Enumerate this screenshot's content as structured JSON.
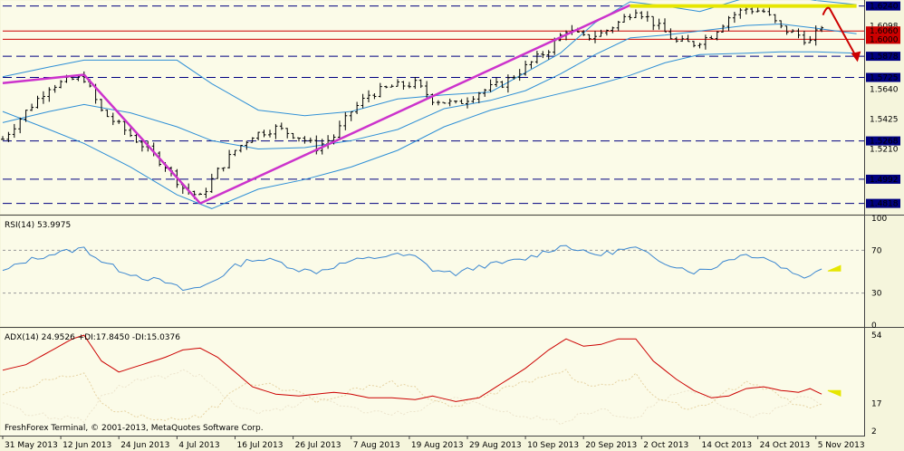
{
  "colors": {
    "background": "#f5f5dc",
    "bars": "#000000",
    "bollinger": "#2e8fd6",
    "trendline": "#cc33cc",
    "resistance": "#e6e600",
    "hline": "#000080",
    "red_line": "#cc0000",
    "rsi": "#3a86d0",
    "adx": "#cc0000",
    "pdi": "#e6d3a3",
    "ndi": "#ece4cc",
    "arrow": "#cc0000",
    "marker": "#e6e600"
  },
  "footer": "FreshForex Terminal, © 2001-2013, MetaQuotes Software Corp.",
  "chart_data": [
    {
      "type": "line",
      "name": "price",
      "ylim": [
        1.475,
        1.627
      ],
      "xlim": [
        0,
        148
      ],
      "x_tick_labels": [
        "31 May 2013",
        "12 Jun 2013",
        "24 Jun 2013",
        "4 Jul 2013",
        "16 Jul 2013",
        "26 Jul 2013",
        "7 Aug 2013",
        "19 Aug 2013",
        "29 Aug 2013",
        "10 Sep 2013",
        "20 Sep 2013",
        "2 Oct 2013",
        "14 Oct 2013",
        "24 Oct 2013",
        "5 Nov 2013"
      ],
      "x_tick_index": [
        0,
        10,
        20,
        30,
        40,
        50,
        60,
        70,
        80,
        90,
        100,
        110,
        120,
        130,
        140
      ],
      "y_tick_labels": [
        "1.6098",
        "1.5878",
        "1.5725",
        "1.5640",
        "1.5425",
        "1.5268",
        "1.5210",
        "1.4992",
        "1.4818"
      ],
      "horizontal_levels": [
        1.624,
        1.606,
        1.6,
        1.5878,
        1.5725,
        1.5268,
        1.4992,
        1.4818
      ],
      "level_labels": [
        "1.6240",
        "1.6060",
        "1.6000",
        "1.5878",
        "1.5725",
        "1.5268",
        "1.4992",
        "1.4818"
      ],
      "red_levels": [
        1.606,
        1.6
      ],
      "trend_lines": [
        {
          "x": [
            0,
            14
          ],
          "y": [
            1.5685,
            1.5745
          ]
        },
        {
          "x": [
            14,
            34
          ],
          "y": [
            1.5745,
            1.4818
          ]
        },
        {
          "x": [
            34,
            108
          ],
          "y": [
            1.4818,
            1.6245
          ]
        }
      ],
      "resistance": {
        "x": [
          108,
          147
        ],
        "y": [
          1.624,
          1.624
        ]
      },
      "ohlc_close_anchors": {
        "x": [
          0,
          4,
          8,
          12,
          14,
          17,
          20,
          24,
          28,
          31,
          34,
          37,
          40,
          43,
          47,
          51,
          54,
          57,
          60,
          63,
          67,
          71,
          74,
          78,
          82,
          86,
          90,
          94,
          97,
          100,
          103,
          106,
          109,
          112,
          116,
          119,
          122,
          125,
          128,
          131,
          134,
          137,
          139,
          141
        ],
        "y": [
          1.528,
          1.548,
          1.566,
          1.571,
          1.572,
          1.548,
          1.538,
          1.524,
          1.509,
          1.493,
          1.486,
          1.505,
          1.52,
          1.531,
          1.536,
          1.53,
          1.522,
          1.53,
          1.548,
          1.56,
          1.566,
          1.568,
          1.557,
          1.553,
          1.562,
          1.568,
          1.58,
          1.593,
          1.607,
          1.601,
          1.604,
          1.612,
          1.622,
          1.612,
          1.598,
          1.597,
          1.603,
          1.616,
          1.622,
          1.62,
          1.608,
          1.603,
          1.598,
          1.61
        ]
      },
      "bollinger_upper": {
        "x": [
          0,
          8,
          14,
          22,
          30,
          36,
          44,
          52,
          60,
          68,
          76,
          84,
          90,
          96,
          102,
          108,
          114,
          120,
          128,
          134,
          140,
          147
        ],
        "y": [
          1.573,
          1.58,
          1.585,
          1.585,
          1.585,
          1.568,
          1.549,
          1.545,
          1.548,
          1.557,
          1.56,
          1.562,
          1.576,
          1.59,
          1.612,
          1.627,
          1.624,
          1.62,
          1.63,
          1.632,
          1.628,
          1.625
        ]
      },
      "bollinger_middle": {
        "x": [
          0,
          8,
          14,
          22,
          30,
          36,
          44,
          52,
          60,
          68,
          76,
          84,
          90,
          96,
          102,
          108,
          114,
          120,
          128,
          134,
          140,
          147
        ],
        "y": [
          1.54,
          1.548,
          1.553,
          1.547,
          1.537,
          1.527,
          1.521,
          1.522,
          1.527,
          1.535,
          1.55,
          1.556,
          1.563,
          1.575,
          1.589,
          1.601,
          1.603,
          1.606,
          1.61,
          1.611,
          1.608,
          1.604
        ]
      },
      "bollinger_lower": {
        "x": [
          0,
          8,
          14,
          22,
          30,
          36,
          44,
          52,
          60,
          68,
          76,
          84,
          90,
          96,
          102,
          108,
          114,
          120,
          128,
          134,
          140,
          147
        ],
        "y": [
          1.548,
          1.535,
          1.525,
          1.508,
          1.488,
          1.478,
          1.492,
          1.499,
          1.508,
          1.52,
          1.537,
          1.549,
          1.555,
          1.561,
          1.567,
          1.574,
          1.583,
          1.589,
          1.59,
          1.591,
          1.591,
          1.59
        ]
      }
    },
    {
      "type": "line",
      "name": "rsi",
      "label": "RSI(14) 53.9975",
      "ylim": [
        0,
        100
      ],
      "y_tick_labels": [
        "100",
        "70",
        "30",
        "0"
      ],
      "y_tick_values": [
        100,
        70,
        30,
        0
      ],
      "levels": [
        70,
        30
      ],
      "x": [
        0,
        4,
        8,
        12,
        14,
        17,
        20,
        24,
        28,
        31,
        34,
        37,
        40,
        43,
        47,
        51,
        54,
        57,
        60,
        63,
        67,
        71,
        74,
        78,
        82,
        86,
        90,
        94,
        97,
        100,
        103,
        106,
        109,
        112,
        116,
        119,
        122,
        125,
        128,
        131,
        134,
        137,
        139,
        141
      ],
      "y": [
        50,
        60,
        66,
        70,
        72,
        60,
        52,
        45,
        40,
        33,
        35,
        44,
        55,
        62,
        60,
        52,
        50,
        55,
        60,
        62,
        66,
        64,
        52,
        48,
        55,
        58,
        62,
        70,
        75,
        68,
        66,
        70,
        72,
        63,
        55,
        50,
        53,
        62,
        66,
        64,
        55,
        47,
        45,
        54
      ]
    },
    {
      "type": "line",
      "name": "adx",
      "label": "ADX(14) 24.9526 +DI:17.8450 -DI:15.0376",
      "ylim": [
        0,
        57
      ],
      "y_tick_labels": [
        "54",
        "17",
        "2"
      ],
      "y_tick_values": [
        54,
        17,
        2
      ],
      "x": [
        0,
        4,
        8,
        12,
        14,
        17,
        20,
        24,
        28,
        31,
        34,
        37,
        40,
        43,
        47,
        51,
        54,
        57,
        60,
        63,
        67,
        71,
        74,
        78,
        82,
        86,
        90,
        94,
        97,
        100,
        103,
        106,
        109,
        112,
        116,
        119,
        122,
        125,
        128,
        131,
        134,
        137,
        139,
        141
      ],
      "adx": [
        35,
        38,
        45,
        52,
        54,
        40,
        34,
        38,
        42,
        46,
        47,
        42,
        34,
        26,
        22,
        21,
        22,
        23,
        22,
        20,
        20,
        19,
        21,
        18,
        20,
        28,
        36,
        46,
        52,
        48,
        49,
        52,
        52,
        40,
        30,
        24,
        20,
        21,
        25,
        26,
        24,
        23,
        25,
        22
      ],
      "pdi": [
        22,
        26,
        30,
        32,
        33,
        18,
        12,
        10,
        9,
        8,
        10,
        16,
        24,
        28,
        26,
        22,
        18,
        20,
        24,
        26,
        28,
        26,
        18,
        16,
        20,
        24,
        28,
        32,
        34,
        28,
        26,
        30,
        32,
        22,
        16,
        14,
        17,
        24,
        28,
        26,
        20,
        15,
        14,
        18
      ],
      "ndi": [
        16,
        12,
        10,
        9,
        8,
        20,
        26,
        30,
        32,
        34,
        32,
        24,
        16,
        12,
        13,
        17,
        20,
        18,
        14,
        12,
        11,
        12,
        18,
        20,
        16,
        12,
        10,
        8,
        6,
        12,
        14,
        10,
        9,
        16,
        22,
        24,
        20,
        14,
        10,
        11,
        16,
        20,
        21,
        15
      ]
    }
  ]
}
